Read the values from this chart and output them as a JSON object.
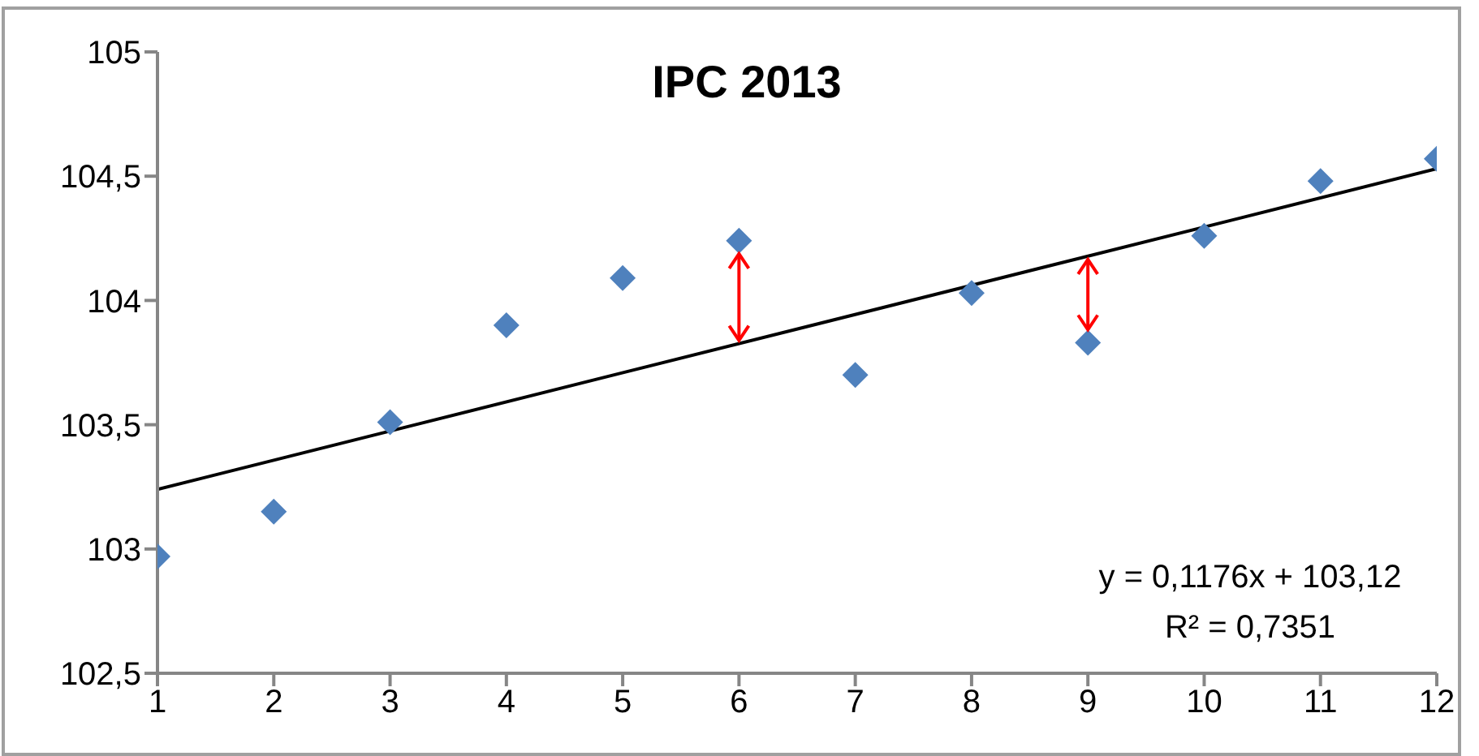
{
  "chart_data": {
    "type": "scatter",
    "title": "IPC 2013",
    "x": [
      1,
      2,
      3,
      4,
      5,
      6,
      7,
      8,
      9,
      10,
      11,
      12
    ],
    "series": [
      {
        "color": "#4f81bd",
        "marker": "diamond",
        "values": [
          102.97,
          103.15,
          103.51,
          103.9,
          104.09,
          104.24,
          103.7,
          104.03,
          103.83,
          104.26,
          104.48,
          104.57
        ]
      },
      {
        "type": "line",
        "color": "#000000",
        "x": [
          1,
          12
        ],
        "values": [
          103.24,
          104.53
        ]
      }
    ],
    "xlim": [
      1,
      12
    ],
    "xticks": [
      1,
      2,
      3,
      4,
      5,
      6,
      7,
      8,
      9,
      10,
      11,
      12
    ],
    "ylim": [
      102.5,
      105
    ],
    "yticks": [
      {
        "value": 102.5,
        "label": "102,5"
      },
      103,
      {
        "value": 103.5,
        "label": "103,5"
      },
      104,
      {
        "value": 104.5,
        "label": "104,5"
      },
      105
    ],
    "annotations": [
      "y = 0,1176x + 103,12",
      "R² = 0,7351"
    ]
  }
}
